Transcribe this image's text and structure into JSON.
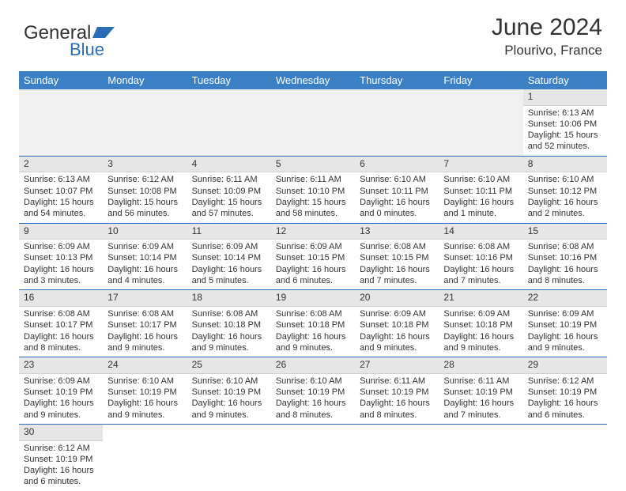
{
  "brand": {
    "part1": "General",
    "part2": "Blue"
  },
  "header": {
    "title": "June 2024",
    "location": "Plourivo, France"
  },
  "dayNames": [
    "Sunday",
    "Monday",
    "Tuesday",
    "Wednesday",
    "Thursday",
    "Friday",
    "Saturday"
  ],
  "colors": {
    "header_bg": "#3b7fc4",
    "header_text": "#ffffff",
    "daynum_bg": "#e6e6e6",
    "row_border": "#2a6db5",
    "logo_blue": "#2a6db5"
  },
  "layout": {
    "startDayIndex": 6,
    "daysInMonth": 30
  },
  "days": {
    "1": {
      "sunrise": "6:13 AM",
      "sunset": "10:06 PM",
      "daylight": "15 hours and 52 minutes."
    },
    "2": {
      "sunrise": "6:13 AM",
      "sunset": "10:07 PM",
      "daylight": "15 hours and 54 minutes."
    },
    "3": {
      "sunrise": "6:12 AM",
      "sunset": "10:08 PM",
      "daylight": "15 hours and 56 minutes."
    },
    "4": {
      "sunrise": "6:11 AM",
      "sunset": "10:09 PM",
      "daylight": "15 hours and 57 minutes."
    },
    "5": {
      "sunrise": "6:11 AM",
      "sunset": "10:10 PM",
      "daylight": "15 hours and 58 minutes."
    },
    "6": {
      "sunrise": "6:10 AM",
      "sunset": "10:11 PM",
      "daylight": "16 hours and 0 minutes."
    },
    "7": {
      "sunrise": "6:10 AM",
      "sunset": "10:11 PM",
      "daylight": "16 hours and 1 minute."
    },
    "8": {
      "sunrise": "6:10 AM",
      "sunset": "10:12 PM",
      "daylight": "16 hours and 2 minutes."
    },
    "9": {
      "sunrise": "6:09 AM",
      "sunset": "10:13 PM",
      "daylight": "16 hours and 3 minutes."
    },
    "10": {
      "sunrise": "6:09 AM",
      "sunset": "10:14 PM",
      "daylight": "16 hours and 4 minutes."
    },
    "11": {
      "sunrise": "6:09 AM",
      "sunset": "10:14 PM",
      "daylight": "16 hours and 5 minutes."
    },
    "12": {
      "sunrise": "6:09 AM",
      "sunset": "10:15 PM",
      "daylight": "16 hours and 6 minutes."
    },
    "13": {
      "sunrise": "6:08 AM",
      "sunset": "10:15 PM",
      "daylight": "16 hours and 7 minutes."
    },
    "14": {
      "sunrise": "6:08 AM",
      "sunset": "10:16 PM",
      "daylight": "16 hours and 7 minutes."
    },
    "15": {
      "sunrise": "6:08 AM",
      "sunset": "10:16 PM",
      "daylight": "16 hours and 8 minutes."
    },
    "16": {
      "sunrise": "6:08 AM",
      "sunset": "10:17 PM",
      "daylight": "16 hours and 8 minutes."
    },
    "17": {
      "sunrise": "6:08 AM",
      "sunset": "10:17 PM",
      "daylight": "16 hours and 9 minutes."
    },
    "18": {
      "sunrise": "6:08 AM",
      "sunset": "10:18 PM",
      "daylight": "16 hours and 9 minutes."
    },
    "19": {
      "sunrise": "6:08 AM",
      "sunset": "10:18 PM",
      "daylight": "16 hours and 9 minutes."
    },
    "20": {
      "sunrise": "6:09 AM",
      "sunset": "10:18 PM",
      "daylight": "16 hours and 9 minutes."
    },
    "21": {
      "sunrise": "6:09 AM",
      "sunset": "10:18 PM",
      "daylight": "16 hours and 9 minutes."
    },
    "22": {
      "sunrise": "6:09 AM",
      "sunset": "10:19 PM",
      "daylight": "16 hours and 9 minutes."
    },
    "23": {
      "sunrise": "6:09 AM",
      "sunset": "10:19 PM",
      "daylight": "16 hours and 9 minutes."
    },
    "24": {
      "sunrise": "6:10 AM",
      "sunset": "10:19 PM",
      "daylight": "16 hours and 9 minutes."
    },
    "25": {
      "sunrise": "6:10 AM",
      "sunset": "10:19 PM",
      "daylight": "16 hours and 9 minutes."
    },
    "26": {
      "sunrise": "6:10 AM",
      "sunset": "10:19 PM",
      "daylight": "16 hours and 8 minutes."
    },
    "27": {
      "sunrise": "6:11 AM",
      "sunset": "10:19 PM",
      "daylight": "16 hours and 8 minutes."
    },
    "28": {
      "sunrise": "6:11 AM",
      "sunset": "10:19 PM",
      "daylight": "16 hours and 7 minutes."
    },
    "29": {
      "sunrise": "6:12 AM",
      "sunset": "10:19 PM",
      "daylight": "16 hours and 6 minutes."
    },
    "30": {
      "sunrise": "6:12 AM",
      "sunset": "10:19 PM",
      "daylight": "16 hours and 6 minutes."
    }
  },
  "labels": {
    "sunrise": "Sunrise: ",
    "sunset": "Sunset: ",
    "daylight": "Daylight: "
  }
}
